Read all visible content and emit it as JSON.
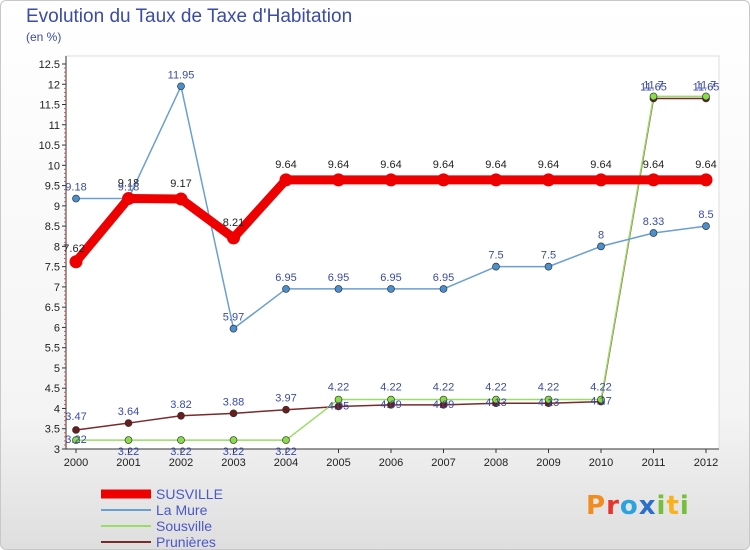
{
  "title": "Evolution du Taux de Taxe d'Habitation",
  "subtitle": "(en %)",
  "logo": {
    "text": "Proxiti"
  },
  "chart_data": {
    "type": "line",
    "x": [
      "2000",
      "2001",
      "2002",
      "2003",
      "2004",
      "2005",
      "2006",
      "2007",
      "2008",
      "2009",
      "2010",
      "2011",
      "2012"
    ],
    "y_ticks": [
      "3",
      "3.5",
      "4",
      "4.5",
      "5",
      "5.5",
      "6",
      "6.5",
      "7",
      "7.5",
      "8",
      "8.5",
      "9",
      "9.5",
      "10",
      "10.5",
      "11",
      "11.5",
      "12",
      "12.5"
    ],
    "ylim": [
      3,
      12.5
    ],
    "grid": false,
    "legend_position": "bottom-left",
    "series": [
      {
        "name": "SUSVILLE",
        "color": "#ee0000",
        "width": 9,
        "labelColor": "#222222",
        "values": [
          7.62,
          9.18,
          9.17,
          8.21,
          9.64,
          9.64,
          9.64,
          9.64,
          9.64,
          9.64,
          9.64,
          9.64,
          9.64
        ],
        "labels": [
          "7.62",
          "9.18",
          "9.17",
          "8.21",
          "9.64",
          "9.64",
          "9.64",
          "9.64",
          "9.64",
          "9.64",
          "9.64",
          "9.64",
          "9.64"
        ]
      },
      {
        "name": "La Mure",
        "color": "#6a9fd2",
        "width": 1.5,
        "labelColor": "#3a4ba8",
        "values": [
          9.18,
          9.18,
          11.95,
          5.97,
          6.95,
          6.95,
          6.95,
          6.95,
          7.5,
          7.5,
          8,
          8.33,
          8.5
        ],
        "labels": [
          "9.18",
          "9.18",
          "11.95",
          "5.97",
          "6.95",
          "6.95",
          "6.95",
          "6.95",
          "7.5",
          "7.5",
          "8",
          "8.33",
          "8.5"
        ]
      },
      {
        "name": "Sousville",
        "color": "#99dd66",
        "width": 1.5,
        "labelColor": "#3a4ba8",
        "values": [
          3.22,
          3.22,
          3.22,
          3.22,
          3.22,
          4.22,
          4.22,
          4.22,
          4.22,
          4.22,
          4.22,
          11.7,
          11.7
        ],
        "labels": [
          "3.22",
          "3.22",
          "3.22",
          "3.22",
          "3.22",
          "4.22",
          "4.22",
          "4.22",
          "4.22",
          "4.22",
          "4.22",
          "11.7",
          "11.7"
        ]
      },
      {
        "name": "Prunières",
        "color": "#7a2a2a",
        "width": 1.5,
        "labelColor": "#3a4ba8",
        "values": [
          3.47,
          3.64,
          3.82,
          3.88,
          3.97,
          4.05,
          4.09,
          4.09,
          4.13,
          4.13,
          4.17,
          11.65,
          11.65
        ],
        "labels": [
          "3.47",
          "3.64",
          "3.82",
          "3.88",
          "3.97",
          "4.05",
          "4.09",
          "4.09",
          "4.13",
          "4.13",
          "4.17",
          "11.65",
          "11.65"
        ]
      }
    ]
  }
}
